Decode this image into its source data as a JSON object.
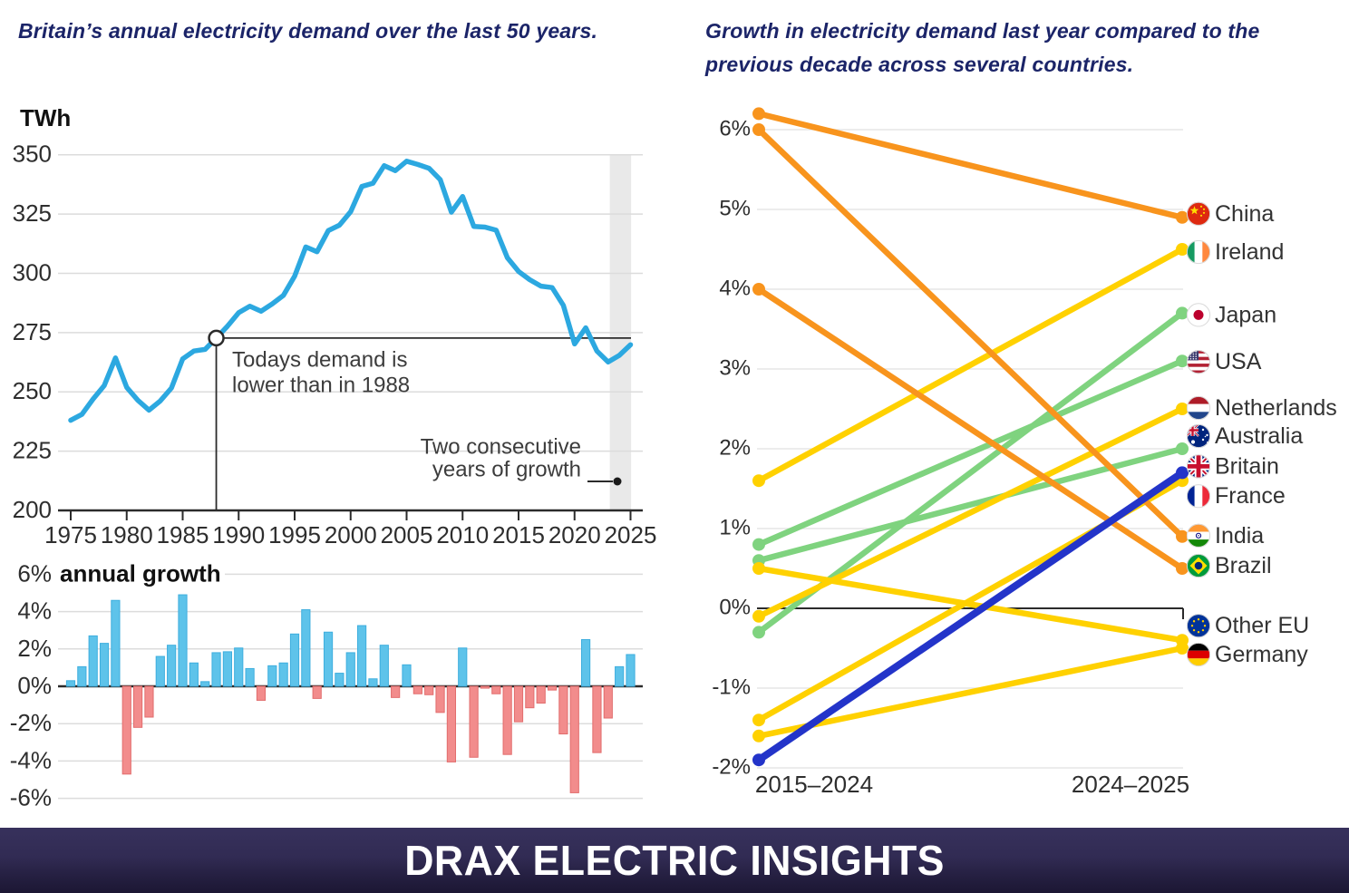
{
  "banner": {
    "title": "DRAX ELECTRIC INSIGHTS"
  },
  "palette": {
    "title_navy": "#1b2468",
    "axis_text": "#2e2e2e",
    "grid": "#dcdcdc",
    "axis_dark": "#2b2b2b",
    "annotation_text": "#3c3c3c",
    "demand_line": "#2ca8e0",
    "highlight_band": "#e9e9e9",
    "bar_positive": "#5ec3ea",
    "bar_positive_border": "#3eaede",
    "bar_negative": "#f28c8c",
    "bar_negative_border": "#e26d6d",
    "slope_orange": "#f8941d",
    "slope_yellow": "#ffd100",
    "slope_green": "#7fd37f",
    "slope_blue": "#2334c9",
    "label_text": "#333333",
    "banner_bg": "#2b2647"
  },
  "chart_data": [
    {
      "type": "line",
      "title": "Britain’s annual electricity demand over the last 50 years.",
      "ylabel": "TWh",
      "ylim": [
        200,
        350
      ],
      "yticks": [
        350,
        325,
        300,
        275,
        250,
        225,
        200
      ],
      "xticks": [
        1975,
        1980,
        1985,
        1990,
        1995,
        2000,
        2005,
        2010,
        2015,
        2020,
        2025
      ],
      "grid": true,
      "x": [
        1975,
        1976,
        1977,
        1978,
        1979,
        1980,
        1981,
        1982,
        1983,
        1984,
        1985,
        1986,
        1987,
        1988,
        1989,
        1990,
        1991,
        1992,
        1993,
        1994,
        1995,
        1996,
        1997,
        1998,
        1999,
        2000,
        2001,
        2002,
        2003,
        2004,
        2005,
        2006,
        2007,
        2008,
        2009,
        2010,
        2011,
        2012,
        2013,
        2014,
        2015,
        2016,
        2017,
        2018,
        2019,
        2020,
        2021,
        2022,
        2023,
        2024,
        2025
      ],
      "values": [
        238.0,
        240.5,
        247.0,
        252.7,
        264.3,
        251.9,
        246.4,
        242.3,
        246.2,
        251.6,
        263.9,
        267.2,
        267.9,
        272.7,
        277.7,
        283.4,
        286.1,
        284.0,
        287.1,
        290.7,
        298.8,
        311.1,
        309.1,
        318.0,
        320.3,
        326.0,
        336.6,
        338.0,
        345.4,
        343.3,
        347.3,
        345.9,
        344.3,
        339.5,
        325.8,
        332.4,
        319.8,
        319.5,
        318.2,
        306.6,
        300.8,
        297.3,
        294.6,
        294.0,
        286.5,
        270.2,
        277.0,
        267.2,
        262.6,
        265.4,
        269.9
      ],
      "highlight_band_years": [
        2023.15,
        2025.05
      ],
      "annotations": {
        "point_year": 1988,
        "point_value": 272.7,
        "label_1988_lines": [
          "Todays demand is",
          "lower than in 1988"
        ],
        "label_growth_lines": [
          "Two consecutive",
          "years of growth"
        ]
      }
    },
    {
      "type": "bar",
      "title": "annual growth",
      "ytick_labels": [
        "6%",
        "4%",
        "2%",
        "0%",
        "-2%",
        "-4%",
        "-6%"
      ],
      "ytick_values": [
        6,
        4,
        2,
        0,
        -2,
        -4,
        -6
      ],
      "x": [
        1975,
        1976,
        1977,
        1978,
        1979,
        1980,
        1981,
        1982,
        1983,
        1984,
        1985,
        1986,
        1987,
        1988,
        1989,
        1990,
        1991,
        1992,
        1993,
        1994,
        1995,
        1996,
        1997,
        1998,
        1999,
        2000,
        2001,
        2002,
        2003,
        2004,
        2005,
        2006,
        2007,
        2008,
        2009,
        2010,
        2011,
        2012,
        2013,
        2014,
        2015,
        2016,
        2017,
        2018,
        2019,
        2020,
        2021,
        2022,
        2023,
        2024,
        2025
      ],
      "values": [
        0.3,
        1.05,
        2.7,
        2.3,
        4.6,
        -4.7,
        -2.2,
        -1.65,
        1.6,
        2.2,
        4.9,
        1.25,
        0.25,
        1.8,
        1.85,
        2.05,
        0.95,
        -0.75,
        1.1,
        1.25,
        2.8,
        4.1,
        -0.65,
        2.9,
        0.7,
        1.8,
        3.25,
        0.4,
        2.2,
        -0.6,
        1.15,
        -0.4,
        -0.45,
        -1.4,
        -4.05,
        2.05,
        -3.8,
        -0.1,
        -0.4,
        -3.65,
        -1.9,
        -1.15,
        -0.9,
        -0.2,
        -2.55,
        -5.7,
        2.5,
        -3.55,
        -1.7,
        1.05,
        1.7
      ]
    },
    {
      "type": "slope",
      "title": "Growth in electricity demand last year compared to the previous decade across several countries.",
      "periods": [
        "2015–2024",
        "2024–2025"
      ],
      "ytick_labels": [
        "6%",
        "5%",
        "4%",
        "3%",
        "2%",
        "1%",
        "0%",
        "-1%",
        "-2%"
      ],
      "ytick_values": [
        6,
        5,
        4,
        3,
        2,
        1,
        0,
        -1,
        -2
      ],
      "series": [
        {
          "name": "China",
          "flag": "china",
          "color": "#f8941d",
          "start": 6.2,
          "end": 4.9
        },
        {
          "name": "India",
          "flag": "india",
          "color": "#f8941d",
          "start": 6.0,
          "end": 0.9
        },
        {
          "name": "Brazil",
          "flag": "brazil",
          "color": "#f8941d",
          "start": 4.0,
          "end": 0.5
        },
        {
          "name": "Ireland",
          "flag": "ireland",
          "color": "#ffd100",
          "start": 1.6,
          "end": 4.5
        },
        {
          "name": "USA",
          "flag": "usa",
          "color": "#7fd37f",
          "start": 0.8,
          "end": 3.1
        },
        {
          "name": "Australia",
          "flag": "australia",
          "color": "#7fd37f",
          "start": 0.6,
          "end": 2.0
        },
        {
          "name": "Other EU",
          "flag": "eu",
          "color": "#ffd100",
          "start": 0.5,
          "end": -0.4
        },
        {
          "name": "Netherlands",
          "flag": "netherlands",
          "color": "#ffd100",
          "start": -0.1,
          "end": 2.5
        },
        {
          "name": "Japan",
          "flag": "japan",
          "color": "#7fd37f",
          "start": -0.3,
          "end": 3.7
        },
        {
          "name": "France",
          "flag": "france",
          "color": "#ffd100",
          "start": -1.4,
          "end": 1.6
        },
        {
          "name": "Germany",
          "flag": "germany",
          "color": "#ffd100",
          "start": -1.6,
          "end": -0.5
        },
        {
          "name": "Britain",
          "flag": "britain",
          "color": "#2334c9",
          "start": -1.9,
          "end": 1.7
        }
      ]
    }
  ]
}
